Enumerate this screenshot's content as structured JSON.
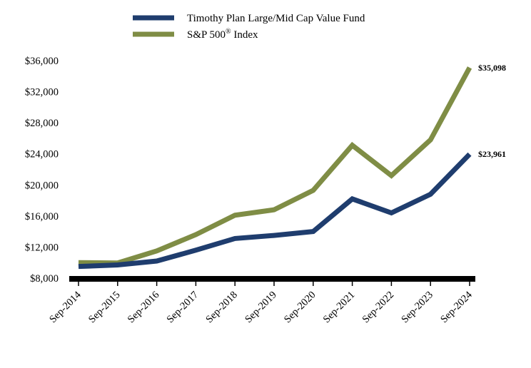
{
  "chart_data": {
    "type": "line",
    "categories": [
      "Sep-2014",
      "Sep-2015",
      "Sep-2016",
      "Sep-2017",
      "Sep-2018",
      "Sep-2019",
      "Sep-2020",
      "Sep-2021",
      "Sep-2022",
      "Sep-2023",
      "Sep-2024"
    ],
    "series": [
      {
        "name": "Timothy Plan Large/Mid Cap Value Fund",
        "color": "#1f3d6e",
        "values": [
          9500,
          9700,
          10200,
          11600,
          13100,
          13500,
          14000,
          18200,
          16400,
          18800,
          23961
        ],
        "end_label": "$23,961"
      },
      {
        "name": "S&P 500® Index",
        "color": "#7f8d45",
        "values": [
          10000,
          9950,
          11500,
          13600,
          16100,
          16800,
          19300,
          25100,
          21200,
          25800,
          35098
        ],
        "end_label": "$35,098"
      }
    ],
    "legend": {
      "fund_label": "Timothy Plan Large/Mid Cap Value Fund",
      "index_label_main": "S&P 500",
      "index_label_sup": "®",
      "index_label_tail": " Index"
    },
    "yticks": [
      8000,
      12000,
      16000,
      20000,
      24000,
      28000,
      32000,
      36000
    ],
    "ytick_labels": [
      "$8,000",
      "$12,000",
      "$16,000",
      "$20,000",
      "$24,000",
      "$28,000",
      "$32,000",
      "$36,000"
    ],
    "ylim": [
      8000,
      36000
    ],
    "title": "",
    "xlabel": "",
    "ylabel": "",
    "grid": false,
    "legend_position": "top-center"
  }
}
